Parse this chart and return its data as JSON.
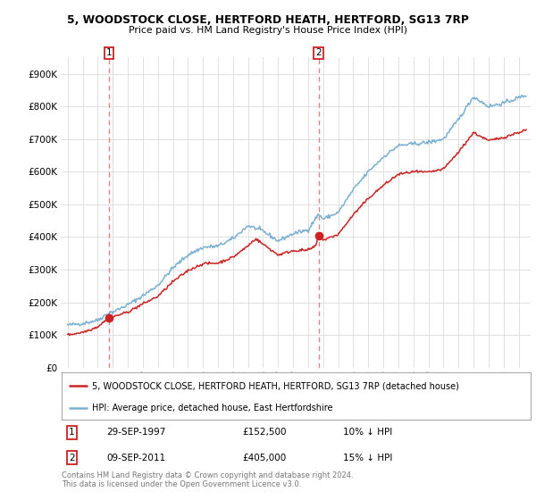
{
  "title_line1": "5, WOODSTOCK CLOSE, HERTFORD HEATH, HERTFORD, SG13 7RP",
  "title_line2": "Price paid vs. HM Land Registry's House Price Index (HPI)",
  "ylim": [
    0,
    950000
  ],
  "yticks": [
    0,
    100000,
    200000,
    300000,
    400000,
    500000,
    600000,
    700000,
    800000,
    900000
  ],
  "ytick_labels": [
    "£0",
    "£100K",
    "£200K",
    "£300K",
    "£400K",
    "£500K",
    "£600K",
    "£700K",
    "£800K",
    "£900K"
  ],
  "sale1_x": 1997.75,
  "sale1_price": 152500,
  "sale2_x": 2011.69,
  "sale2_price": 405000,
  "hpi_line_color": "#7ab0d4",
  "price_line_color": "#cc2222",
  "sale_dot_color": "#cc2222",
  "vline_color": "#e88080",
  "grid_color": "#e0e0e0",
  "bg_color": "#ffffff",
  "legend_label_price": "5, WOODSTOCK CLOSE, HERTFORD HEATH, HERTFORD, SG13 7RP (detached house)",
  "legend_label_hpi": "HPI: Average price, detached house, East Hertfordshire",
  "footer": "Contains HM Land Registry data © Crown copyright and database right 2024.\nThis data is licensed under the Open Government Licence v3.0.",
  "xlim_start": 1994.6,
  "xlim_end": 2025.8,
  "hpi_anchors": [
    [
      1995.0,
      130000
    ],
    [
      1996.0,
      135000
    ],
    [
      1997.0,
      145000
    ],
    [
      1997.75,
      168000
    ],
    [
      1998.0,
      170000
    ],
    [
      1999.0,
      192000
    ],
    [
      2000.0,
      220000
    ],
    [
      2001.0,
      252000
    ],
    [
      2002.0,
      305000
    ],
    [
      2003.0,
      345000
    ],
    [
      2004.0,
      368000
    ],
    [
      2005.0,
      372000
    ],
    [
      2006.0,
      395000
    ],
    [
      2007.0,
      435000
    ],
    [
      2008.0,
      418000
    ],
    [
      2009.0,
      388000
    ],
    [
      2010.0,
      410000
    ],
    [
      2011.0,
      422000
    ],
    [
      2011.69,
      470000
    ],
    [
      2012.0,
      455000
    ],
    [
      2013.0,
      475000
    ],
    [
      2014.0,
      545000
    ],
    [
      2015.0,
      600000
    ],
    [
      2016.0,
      645000
    ],
    [
      2017.0,
      680000
    ],
    [
      2018.0,
      685000
    ],
    [
      2019.0,
      690000
    ],
    [
      2020.0,
      700000
    ],
    [
      2021.0,
      760000
    ],
    [
      2022.0,
      830000
    ],
    [
      2023.0,
      800000
    ],
    [
      2024.0,
      810000
    ],
    [
      2025.5,
      835000
    ]
  ],
  "price_anchors": [
    [
      1995.0,
      100000
    ],
    [
      1995.5,
      104000
    ],
    [
      1996.0,
      108000
    ],
    [
      1996.5,
      116000
    ],
    [
      1997.0,
      125000
    ],
    [
      1997.75,
      152500
    ],
    [
      1998.0,
      155000
    ],
    [
      1999.0,
      170000
    ],
    [
      2000.0,
      195000
    ],
    [
      2001.0,
      218000
    ],
    [
      2002.0,
      263000
    ],
    [
      2003.0,
      297000
    ],
    [
      2004.0,
      318000
    ],
    [
      2005.0,
      320000
    ],
    [
      2006.0,
      338000
    ],
    [
      2007.0,
      373000
    ],
    [
      2007.5,
      395000
    ],
    [
      2008.0,
      378000
    ],
    [
      2009.0,
      345000
    ],
    [
      2010.0,
      358000
    ],
    [
      2011.0,
      360000
    ],
    [
      2011.5,
      372000
    ],
    [
      2011.69,
      405000
    ],
    [
      2012.0,
      390000
    ],
    [
      2013.0,
      408000
    ],
    [
      2014.0,
      468000
    ],
    [
      2015.0,
      518000
    ],
    [
      2016.0,
      558000
    ],
    [
      2017.0,
      592000
    ],
    [
      2018.0,
      600000
    ],
    [
      2019.0,
      598000
    ],
    [
      2020.0,
      608000
    ],
    [
      2021.0,
      660000
    ],
    [
      2022.0,
      720000
    ],
    [
      2023.0,
      695000
    ],
    [
      2024.0,
      705000
    ],
    [
      2025.5,
      728000
    ]
  ]
}
